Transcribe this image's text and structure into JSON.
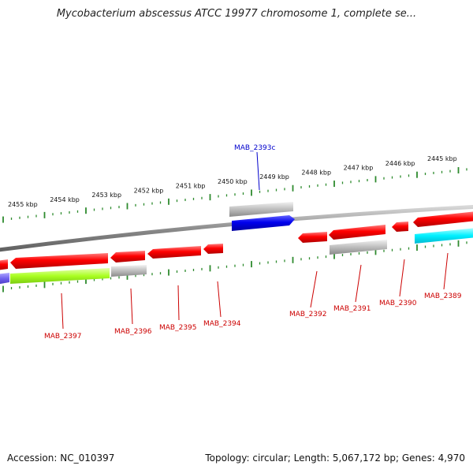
{
  "title": "Mycobacterium abscessus ATCC 19977 chromosome 1, complete se...",
  "footer": {
    "accession": "Accession: NC_010397",
    "summary": "Topology: circular; Length: 5,067,172 bp; Genes: 4,970"
  },
  "colors": {
    "backbone": "#8c8c8c",
    "tick": "#2e8b2e",
    "label_red": "#cc0000",
    "label_blue": "#0000cc"
  },
  "ticks": [
    {
      "label": "2455 kbp",
      "kbp": 2455
    },
    {
      "label": "2454 kbp",
      "kbp": 2454
    },
    {
      "label": "2453 kbp",
      "kbp": 2453
    },
    {
      "label": "2452 kbp",
      "kbp": 2452
    },
    {
      "label": "2451 kbp",
      "kbp": 2451
    },
    {
      "label": "2450 kbp",
      "kbp": 2450
    },
    {
      "label": "2449 kbp",
      "kbp": 2449
    },
    {
      "label": "2448 kbp",
      "kbp": 2448
    },
    {
      "label": "2447 kbp",
      "kbp": 2447
    },
    {
      "label": "2446 kbp",
      "kbp": 2446
    },
    {
      "label": "2445 kbp",
      "kbp": 2445
    }
  ],
  "genes": [
    {
      "label": "MAB_2397",
      "strand": "reverse",
      "color": "#ff0000"
    },
    {
      "label": "MAB_2396",
      "strand": "reverse",
      "color": "#ff0000"
    },
    {
      "label": "MAB_2395",
      "strand": "reverse",
      "color": "#ff0000"
    },
    {
      "label": "MAB_2394",
      "strand": "reverse",
      "color": "#ff0000"
    },
    {
      "label": "MAB_2393c",
      "strand": "forward",
      "color": "#0000ee"
    },
    {
      "label": "MAB_2392",
      "strand": "reverse",
      "color": "#ff0000"
    },
    {
      "label": "MAB_2391",
      "strand": "reverse",
      "color": "#ff0000"
    },
    {
      "label": "MAB_2390",
      "strand": "reverse",
      "color": "#ff0000"
    },
    {
      "label": "MAB_2389",
      "strand": "reverse",
      "color": "#ff0000"
    }
  ]
}
